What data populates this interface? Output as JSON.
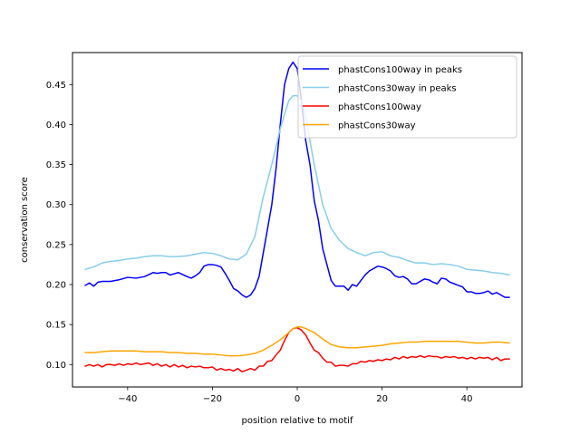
{
  "chart_data": {
    "type": "line",
    "title": "",
    "xlabel": "position relative to motif",
    "ylabel": "conservation score",
    "xlim": [
      -53,
      53
    ],
    "ylim": [
      0.072,
      0.49
    ],
    "xticks": [
      -40,
      -20,
      0,
      20,
      40
    ],
    "xtick_labels": [
      "−40",
      "−20",
      "0",
      "20",
      "40"
    ],
    "yticks": [
      0.1,
      0.15,
      0.2,
      0.25,
      0.3,
      0.35,
      0.4,
      0.45
    ],
    "ytick_labels": [
      "0.10",
      "0.15",
      "0.20",
      "0.25",
      "0.30",
      "0.35",
      "0.40",
      "0.45"
    ],
    "grid": false,
    "legend_position": "top-right",
    "series": [
      {
        "name": "phastCons100way in peaks",
        "color": "#0000ff",
        "x": [
          -50,
          -49,
          -48,
          -47,
          -46,
          -44,
          -42,
          -40,
          -38,
          -36,
          -34,
          -33,
          -32,
          -31,
          -30,
          -28,
          -26,
          -25,
          -24,
          -23,
          -22,
          -21,
          -20,
          -19,
          -18,
          -17,
          -16,
          -15,
          -14,
          -13,
          -12,
          -11,
          -10,
          -9,
          -8,
          -7,
          -6,
          -5,
          -4,
          -3,
          -2,
          -1,
          0,
          1,
          2,
          3,
          4,
          5,
          6,
          7,
          8,
          9,
          10,
          11,
          12,
          13,
          14,
          15,
          16,
          17,
          18,
          19,
          20,
          21,
          22,
          23,
          24,
          25,
          26,
          27,
          28,
          29,
          30,
          31,
          32,
          33,
          34,
          35,
          36,
          37,
          38,
          39,
          40,
          41,
          42,
          43,
          44,
          45,
          46,
          47,
          48,
          49,
          50
        ],
        "y": [
          0.199,
          0.202,
          0.198,
          0.203,
          0.204,
          0.204,
          0.206,
          0.209,
          0.208,
          0.21,
          0.215,
          0.214,
          0.215,
          0.215,
          0.212,
          0.215,
          0.21,
          0.208,
          0.211,
          0.215,
          0.223,
          0.225,
          0.225,
          0.224,
          0.222,
          0.214,
          0.205,
          0.195,
          0.192,
          0.187,
          0.184,
          0.187,
          0.195,
          0.21,
          0.24,
          0.27,
          0.3,
          0.345,
          0.4,
          0.45,
          0.47,
          0.478,
          0.47,
          0.43,
          0.38,
          0.35,
          0.305,
          0.28,
          0.245,
          0.225,
          0.205,
          0.198,
          0.198,
          0.198,
          0.193,
          0.2,
          0.198,
          0.205,
          0.212,
          0.217,
          0.22,
          0.223,
          0.222,
          0.22,
          0.217,
          0.211,
          0.209,
          0.21,
          0.207,
          0.201,
          0.201,
          0.204,
          0.207,
          0.206,
          0.203,
          0.201,
          0.208,
          0.207,
          0.203,
          0.201,
          0.199,
          0.197,
          0.191,
          0.191,
          0.189,
          0.189,
          0.19,
          0.192,
          0.188,
          0.19,
          0.187,
          0.184,
          0.184
        ]
      },
      {
        "name": "phastCons30way in peaks",
        "color": "#87ceeb",
        "x": [
          -50,
          -48,
          -46,
          -44,
          -42,
          -40,
          -38,
          -36,
          -34,
          -32,
          -30,
          -28,
          -26,
          -24,
          -22,
          -20,
          -18,
          -16,
          -14,
          -12,
          -10,
          -8,
          -6,
          -4,
          -2,
          -1,
          0,
          1,
          2,
          4,
          6,
          8,
          10,
          12,
          14,
          16,
          18,
          20,
          22,
          24,
          26,
          28,
          30,
          32,
          34,
          36,
          38,
          40,
          42,
          44,
          46,
          48,
          50
        ],
        "y": [
          0.219,
          0.222,
          0.227,
          0.229,
          0.23,
          0.232,
          0.233,
          0.235,
          0.236,
          0.236,
          0.235,
          0.235,
          0.236,
          0.238,
          0.24,
          0.239,
          0.236,
          0.232,
          0.231,
          0.238,
          0.26,
          0.31,
          0.35,
          0.395,
          0.43,
          0.436,
          0.436,
          0.43,
          0.41,
          0.35,
          0.3,
          0.27,
          0.255,
          0.245,
          0.24,
          0.236,
          0.24,
          0.241,
          0.236,
          0.234,
          0.23,
          0.227,
          0.227,
          0.225,
          0.226,
          0.225,
          0.223,
          0.219,
          0.218,
          0.217,
          0.215,
          0.214,
          0.212
        ]
      },
      {
        "name": "phastCons100way",
        "color": "#ff0000",
        "x": [
          -50,
          -49,
          -48,
          -47,
          -46,
          -45,
          -44,
          -43,
          -42,
          -41,
          -40,
          -39,
          -38,
          -37,
          -36,
          -35,
          -34,
          -33,
          -32,
          -31,
          -30,
          -29,
          -28,
          -27,
          -26,
          -25,
          -24,
          -23,
          -22,
          -21,
          -20,
          -19,
          -18,
          -17,
          -16,
          -15,
          -14,
          -13,
          -12,
          -11,
          -10,
          -9,
          -8,
          -7,
          -6,
          -5,
          -4,
          -3,
          -2,
          -1,
          0,
          1,
          2,
          3,
          4,
          5,
          6,
          7,
          8,
          9,
          10,
          11,
          12,
          13,
          14,
          15,
          16,
          17,
          18,
          19,
          20,
          21,
          22,
          23,
          24,
          25,
          26,
          27,
          28,
          29,
          30,
          31,
          32,
          33,
          34,
          35,
          36,
          37,
          38,
          39,
          40,
          41,
          42,
          43,
          44,
          45,
          46,
          47,
          48,
          49,
          50
        ],
        "y": [
          0.098,
          0.1,
          0.098,
          0.1,
          0.097,
          0.1,
          0.1,
          0.099,
          0.101,
          0.099,
          0.101,
          0.1,
          0.102,
          0.1,
          0.101,
          0.102,
          0.099,
          0.101,
          0.098,
          0.1,
          0.097,
          0.1,
          0.097,
          0.099,
          0.096,
          0.098,
          0.097,
          0.098,
          0.096,
          0.096,
          0.097,
          0.093,
          0.095,
          0.093,
          0.094,
          0.092,
          0.095,
          0.091,
          0.093,
          0.095,
          0.093,
          0.098,
          0.098,
          0.104,
          0.105,
          0.112,
          0.118,
          0.13,
          0.14,
          0.145,
          0.146,
          0.143,
          0.137,
          0.127,
          0.118,
          0.115,
          0.108,
          0.103,
          0.103,
          0.098,
          0.099,
          0.099,
          0.098,
          0.101,
          0.101,
          0.104,
          0.103,
          0.105,
          0.104,
          0.106,
          0.105,
          0.107,
          0.106,
          0.109,
          0.107,
          0.11,
          0.108,
          0.11,
          0.109,
          0.111,
          0.109,
          0.111,
          0.11,
          0.11,
          0.108,
          0.11,
          0.109,
          0.11,
          0.108,
          0.109,
          0.107,
          0.109,
          0.107,
          0.109,
          0.108,
          0.109,
          0.106,
          0.109,
          0.105,
          0.107,
          0.107
        ]
      },
      {
        "name": "phastCons30way",
        "color": "#ffa500",
        "x": [
          -50,
          -48,
          -46,
          -44,
          -42,
          -40,
          -38,
          -36,
          -34,
          -32,
          -30,
          -28,
          -26,
          -24,
          -22,
          -20,
          -18,
          -16,
          -14,
          -12,
          -10,
          -8,
          -6,
          -4,
          -2,
          -1,
          0,
          1,
          2,
          4,
          6,
          8,
          10,
          12,
          14,
          16,
          18,
          20,
          22,
          24,
          26,
          28,
          30,
          32,
          34,
          36,
          38,
          40,
          42,
          44,
          46,
          48,
          50
        ],
        "y": [
          0.115,
          0.115,
          0.116,
          0.117,
          0.117,
          0.117,
          0.117,
          0.116,
          0.116,
          0.116,
          0.115,
          0.115,
          0.114,
          0.114,
          0.113,
          0.113,
          0.112,
          0.111,
          0.111,
          0.112,
          0.114,
          0.118,
          0.124,
          0.131,
          0.14,
          0.145,
          0.147,
          0.147,
          0.145,
          0.14,
          0.132,
          0.125,
          0.122,
          0.121,
          0.121,
          0.122,
          0.123,
          0.124,
          0.126,
          0.127,
          0.128,
          0.128,
          0.129,
          0.129,
          0.129,
          0.129,
          0.129,
          0.128,
          0.127,
          0.127,
          0.128,
          0.128,
          0.127
        ]
      }
    ]
  }
}
